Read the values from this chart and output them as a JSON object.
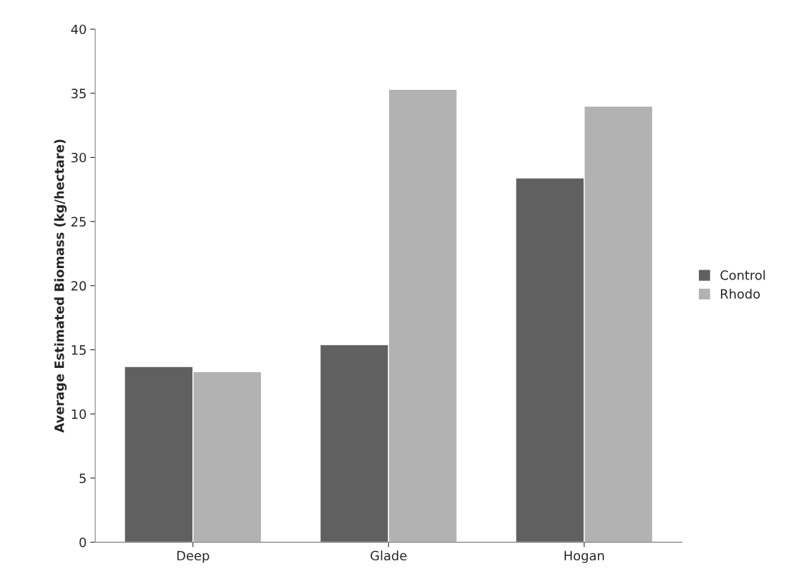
{
  "chart_data": {
    "type": "bar",
    "ylabel": "Average Estimated Biomass (kg/hectare)",
    "categories": [
      "Deep",
      "Glade",
      "Hogan"
    ],
    "series": [
      {
        "name": "Control",
        "color": "#606060",
        "values": [
          13.7,
          15.4,
          28.4
        ]
      },
      {
        "name": "Rhodo",
        "color": "#b2b2b2",
        "values": [
          13.3,
          35.3,
          34.0
        ]
      }
    ],
    "ylim": [
      0,
      40
    ],
    "yticks": [
      0,
      5,
      10,
      15,
      20,
      25,
      30,
      35,
      40
    ],
    "grid": false,
    "legend": "right"
  }
}
